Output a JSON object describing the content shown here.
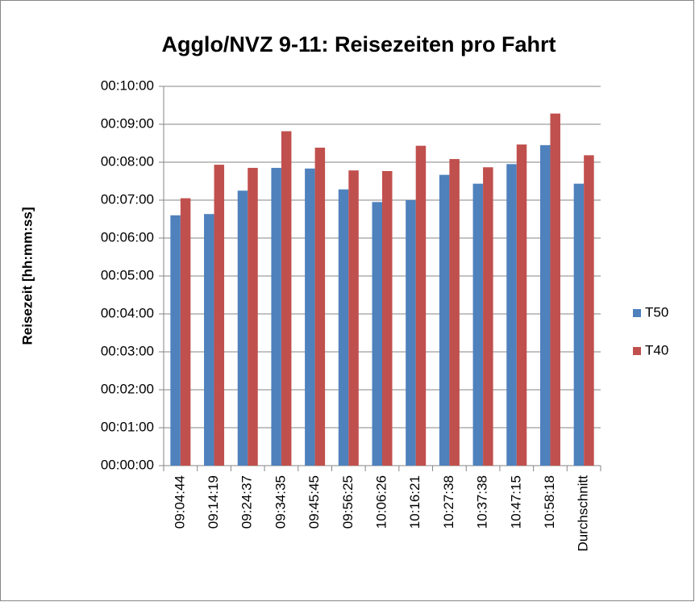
{
  "chart_data": {
    "type": "bar",
    "title": "Agglo/NVZ 9-11: Reisezeiten pro Fahrt",
    "y_label": "Reisezeit [hh:mm:ss]",
    "categories": [
      "09:04:44",
      "09:14:19",
      "09:24:37",
      "09:34:35",
      "09:45:45",
      "09:56:25",
      "10:06:26",
      "10:16:21",
      "10:27:38",
      "10:37:38",
      "10:47:15",
      "10:58:18",
      "Durchschnitt"
    ],
    "series": [
      {
        "name": "T50",
        "color": "#4f81bd",
        "values": [
          396,
          398,
          435,
          471,
          470,
          437,
          417,
          420,
          460,
          446,
          477,
          507,
          446
        ]
      },
      {
        "name": "T40",
        "color": "#c0504d",
        "values": [
          423,
          476,
          471,
          529,
          503,
          467,
          466,
          506,
          485,
          472,
          508,
          557,
          491
        ]
      }
    ],
    "ylim": [
      0,
      600
    ],
    "yticks": [
      {
        "value": 0,
        "label": "00:00:00"
      },
      {
        "value": 60,
        "label": "00:01:00"
      },
      {
        "value": 120,
        "label": "00:02:00"
      },
      {
        "value": 180,
        "label": "00:03:00"
      },
      {
        "value": 240,
        "label": "00:04:00"
      },
      {
        "value": 300,
        "label": "00:05:00"
      },
      {
        "value": 360,
        "label": "00:06:00"
      },
      {
        "value": 420,
        "label": "00:07:00"
      },
      {
        "value": 480,
        "label": "00:08:00"
      },
      {
        "value": 540,
        "label": "00:09:00"
      },
      {
        "value": 600,
        "label": "00:10:00"
      }
    ],
    "grid": true,
    "legend": "right"
  }
}
